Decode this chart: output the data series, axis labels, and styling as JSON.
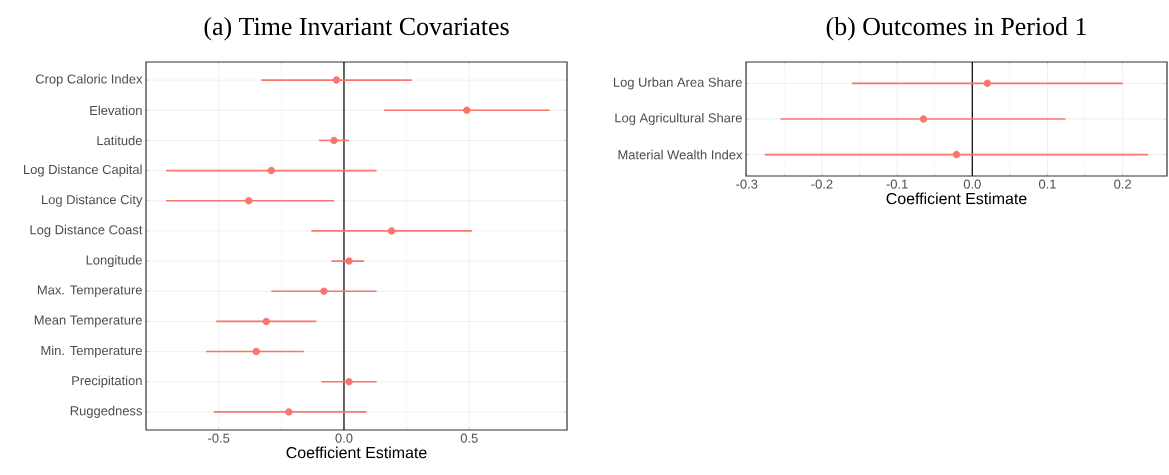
{
  "chart_data": [
    {
      "type": "scatter",
      "title": "(a) Time Invariant Covariates",
      "xlabel": "Coefficient Estimate",
      "orientation": "horizontal",
      "categories": [
        "Crop Caloric Index",
        "Elevation",
        "Latitude",
        "Log Distance Capital",
        "Log Distance City",
        "Log Distance Coast",
        "Longitude",
        "Max. Temperature",
        "Mean Temperature",
        "Min. Temperature",
        "Precipitation",
        "Ruggedness"
      ],
      "values": [
        -0.03,
        0.49,
        -0.04,
        -0.29,
        -0.38,
        0.19,
        0.02,
        -0.08,
        -0.31,
        -0.35,
        0.02,
        -0.22
      ],
      "errors": [
        [
          -0.33,
          0.27
        ],
        [
          0.16,
          0.82
        ],
        [
          -0.1,
          0.02
        ],
        [
          -0.71,
          0.13
        ],
        [
          -0.71,
          -0.04
        ],
        [
          -0.13,
          0.51
        ],
        [
          -0.05,
          0.08
        ],
        [
          -0.29,
          0.13
        ],
        [
          -0.51,
          -0.11
        ],
        [
          -0.55,
          -0.16
        ],
        [
          -0.09,
          0.13
        ],
        [
          -0.52,
          0.09
        ]
      ],
      "color": "#f8766d",
      "marker": "circle",
      "grid": true,
      "xlim": [
        -0.79,
        0.89
      ],
      "xticks": [
        -0.5,
        {
          "value": 0,
          "label": "0.0"
        },
        0.5
      ],
      "ref_lines": [
        {
          "axis": "x",
          "value": 0,
          "color": "#000000"
        }
      ]
    },
    {
      "type": "scatter",
      "title": "(b) Outcomes in Period 1",
      "xlabel": "Coefficient Estimate",
      "orientation": "horizontal",
      "categories": [
        "Log Urban Area Share",
        "Log Agricultural Share",
        "Material Wealth Index"
      ],
      "values": [
        0.02,
        -0.065,
        -0.021
      ],
      "errors": [
        [
          -0.16,
          0.2
        ],
        [
          -0.255,
          0.124
        ],
        [
          -0.276,
          0.234
        ]
      ],
      "color": "#f8766d",
      "marker": "circle",
      "grid": true,
      "xlim": [
        -0.301,
        0.259
      ],
      "xticks": [
        -0.3,
        -0.2,
        -0.1,
        {
          "value": 0,
          "label": "0.0"
        },
        0.1,
        0.2
      ],
      "ref_lines": [
        {
          "axis": "x",
          "value": 0,
          "color": "#000000"
        }
      ]
    }
  ]
}
